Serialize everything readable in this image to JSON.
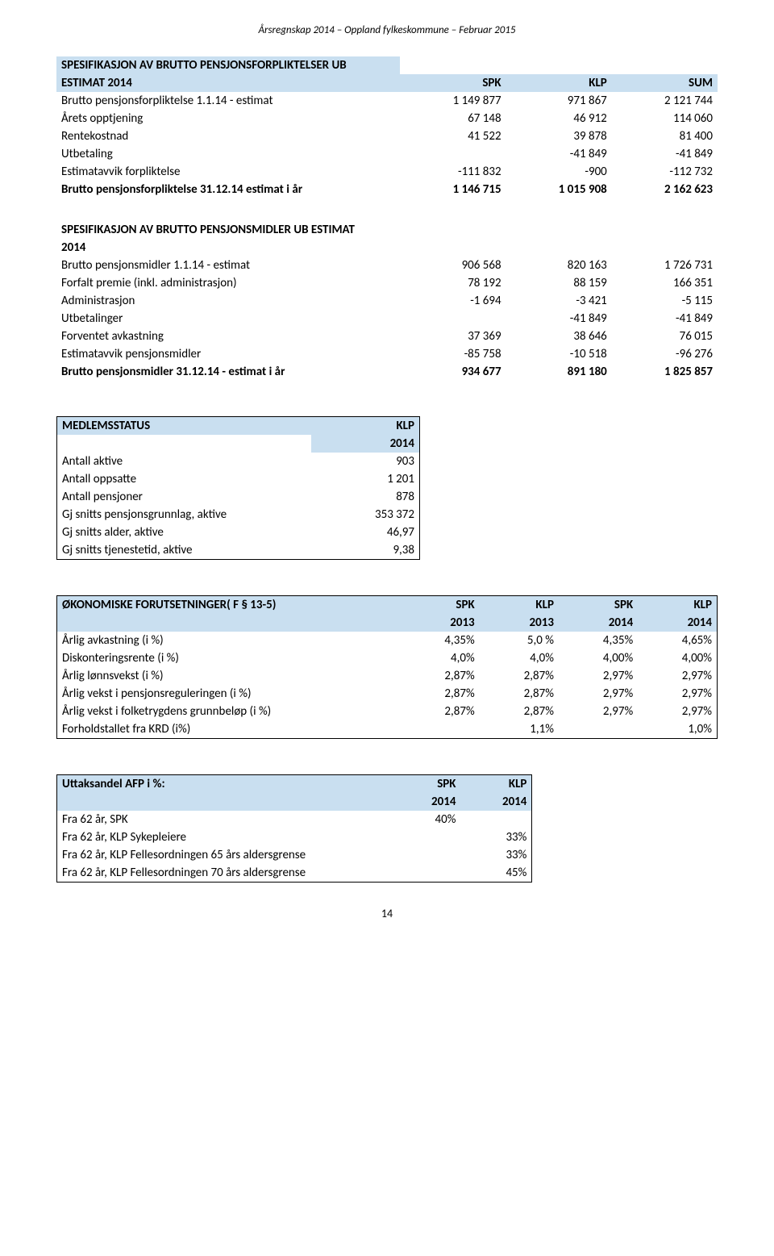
{
  "header": "Årsregnskap 2014 – Oppland fylkeskommune – Februar 2015",
  "page_number": "14",
  "colors": {
    "shade": "#c9dff0",
    "border": "#000000",
    "bg": "#ffffff",
    "text": "#000000"
  },
  "table1": {
    "title_line1": "SPESIFIKASJON AV BRUTTO PENSJONSFORPLIKTELSER UB",
    "title_line2": "ESTIMAT  2014",
    "cols": [
      "SPK",
      "KLP",
      "SUM"
    ],
    "rows": [
      {
        "label": "Brutto pensjonsforpliktelse 1.1.14 - estimat",
        "vals": [
          "1 149 877",
          "971 867",
          "2 121 744"
        ]
      },
      {
        "label": "Årets opptjening",
        "vals": [
          "67 148",
          "46 912",
          "114 060"
        ]
      },
      {
        "label": "Rentekostnad",
        "vals": [
          "41 522",
          "39 878",
          "81 400"
        ]
      },
      {
        "label": "Utbetaling",
        "vals": [
          "",
          "-41 849",
          "-41 849"
        ]
      },
      {
        "label": "Estimatavvik forpliktelse",
        "vals": [
          "-111 832",
          "-900",
          "-112 732"
        ]
      }
    ],
    "total_label": "Brutto pensjonsforpliktelse 31.12.14 estimat i år",
    "total_vals": [
      "1 146 715",
      "1 015 908",
      "2 162 623"
    ]
  },
  "table2": {
    "title_line1": "SPESIFIKASJON AV BRUTTO PENSJONSMIDLER UB ESTIMAT",
    "title_line2": "2014",
    "rows": [
      {
        "label": "Brutto pensjonsmidler 1.1.14 - estimat",
        "vals": [
          "906 568",
          "820 163",
          "1 726 731"
        ]
      },
      {
        "label": "Forfalt premie (inkl. administrasjon)",
        "vals": [
          "78 192",
          "88 159",
          "166 351"
        ]
      },
      {
        "label": "Administrasjon",
        "vals": [
          "-1 694",
          "-3 421",
          "-5 115"
        ]
      },
      {
        "label": "Utbetalinger",
        "vals": [
          "",
          "-41 849",
          "-41 849"
        ]
      },
      {
        "label": "Forventet avkastning",
        "vals": [
          "37 369",
          "38 646",
          "76 015"
        ]
      },
      {
        "label": "Estimatavvik pensjonsmidler",
        "vals": [
          "-85 758",
          "-10 518",
          "-96 276"
        ]
      }
    ],
    "total_label": "Brutto pensjonsmidler 31.12.14 - estimat i år",
    "total_vals": [
      "934 677",
      "891 180",
      "1 825 857"
    ]
  },
  "table3": {
    "header": "MEDLEMSSTATUS",
    "col": "KLP",
    "year": "2014",
    "rows": [
      {
        "label": "Antall aktive",
        "val": "903"
      },
      {
        "label": "Antall oppsatte",
        "val": "1 201"
      },
      {
        "label": "Antall pensjoner",
        "val": "878"
      },
      {
        "label": "Gj snitts pensjonsgrunnlag, aktive",
        "val": "353 372"
      },
      {
        "label": "Gj snitts alder, aktive",
        "val": "46,97"
      },
      {
        "label": "Gj snitts tjenestetid, aktive",
        "val": "9,38"
      }
    ]
  },
  "table4": {
    "header": "ØKONOMISKE FORUTSETNINGER( F § 13-5)",
    "cols": [
      "SPK",
      "KLP",
      "SPK",
      "KLP"
    ],
    "years": [
      "2013",
      "2013",
      "2014",
      "2014"
    ],
    "rows": [
      {
        "label": "Årlig avkastning (i %)",
        "vals": [
          "4,35%",
          "5,0 %",
          "4,35%",
          "4,65%"
        ]
      },
      {
        "label": "Diskonteringsrente (i %)",
        "vals": [
          "4,0%",
          "4,0%",
          "4,00%",
          "4,00%"
        ]
      },
      {
        "label": "Årlig lønnsvekst (i %)",
        "vals": [
          "2,87%",
          "2,87%",
          "2,97%",
          "2,97%"
        ]
      },
      {
        "label": "Årlig vekst i pensjonsreguleringen (i %)",
        "vals": [
          "2,87%",
          "2,87%",
          "2,97%",
          "2,97%"
        ]
      },
      {
        "label": "Årlig vekst i folketrygdens grunnbeløp (i %)",
        "vals": [
          "2,87%",
          "2,87%",
          "2,97%",
          "2,97%"
        ]
      },
      {
        "label": "Forholdstallet fra KRD (i%)",
        "vals": [
          "",
          "1,1%",
          "",
          "1,0%"
        ]
      }
    ]
  },
  "table5": {
    "header": "Uttaksandel AFP i %:",
    "cols": [
      "SPK",
      "KLP"
    ],
    "years": [
      "2014",
      "2014"
    ],
    "rows": [
      {
        "label": "Fra 62 år, SPK",
        "vals": [
          "40%",
          ""
        ]
      },
      {
        "label": "Fra 62 år, KLP Sykepleiere",
        "vals": [
          "",
          "33%"
        ]
      },
      {
        "label": "Fra 62 år, KLP Fellesordningen 65 års aldersgrense",
        "vals": [
          "",
          "33%"
        ]
      },
      {
        "label": "Fra 62 år, KLP Fellesordningen 70 års aldersgrense",
        "vals": [
          "",
          "45%"
        ]
      }
    ]
  }
}
